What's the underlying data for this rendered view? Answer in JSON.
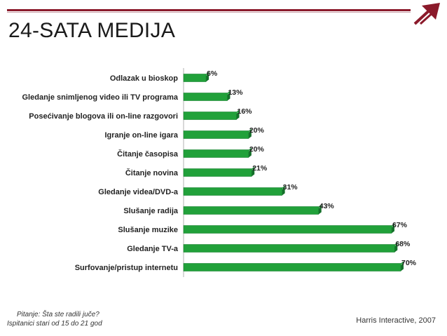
{
  "header": {
    "title": "24-SATA MEDIJA",
    "brand_color": "#8b1a2b"
  },
  "chart_data": {
    "type": "bar",
    "orientation": "horizontal",
    "categories": [
      "Odlazak u bioskop",
      "Gledanje snimljenog video ili TV programa",
      "Posećivanje blogova ili on-line razgovori",
      "Igranje on-line igara",
      "Čitanje časopisa",
      "Čitanje novina",
      "Gledanje videa/DVD-a",
      "Slušanje radija",
      "Slušanje muzike",
      "Gledanje TV-a",
      "Surfovanje/pristup internetu"
    ],
    "values": [
      6,
      13,
      16,
      20,
      20,
      21,
      31,
      43,
      67,
      68,
      70
    ],
    "value_labels": [
      "6%",
      "13%",
      "16%",
      "20%",
      "20%",
      "21%",
      "31%",
      "43%",
      "67%",
      "68%",
      "70%"
    ],
    "xlim": [
      0,
      70
    ],
    "bar_color": "#21a13a",
    "grid": false,
    "legend": "none"
  },
  "footer": {
    "question": "Pitanje: Šta ste radili juče?",
    "respondents": "Ispitanici stari od 15 do 21 god",
    "source": "Harris Interactive, 2007"
  }
}
